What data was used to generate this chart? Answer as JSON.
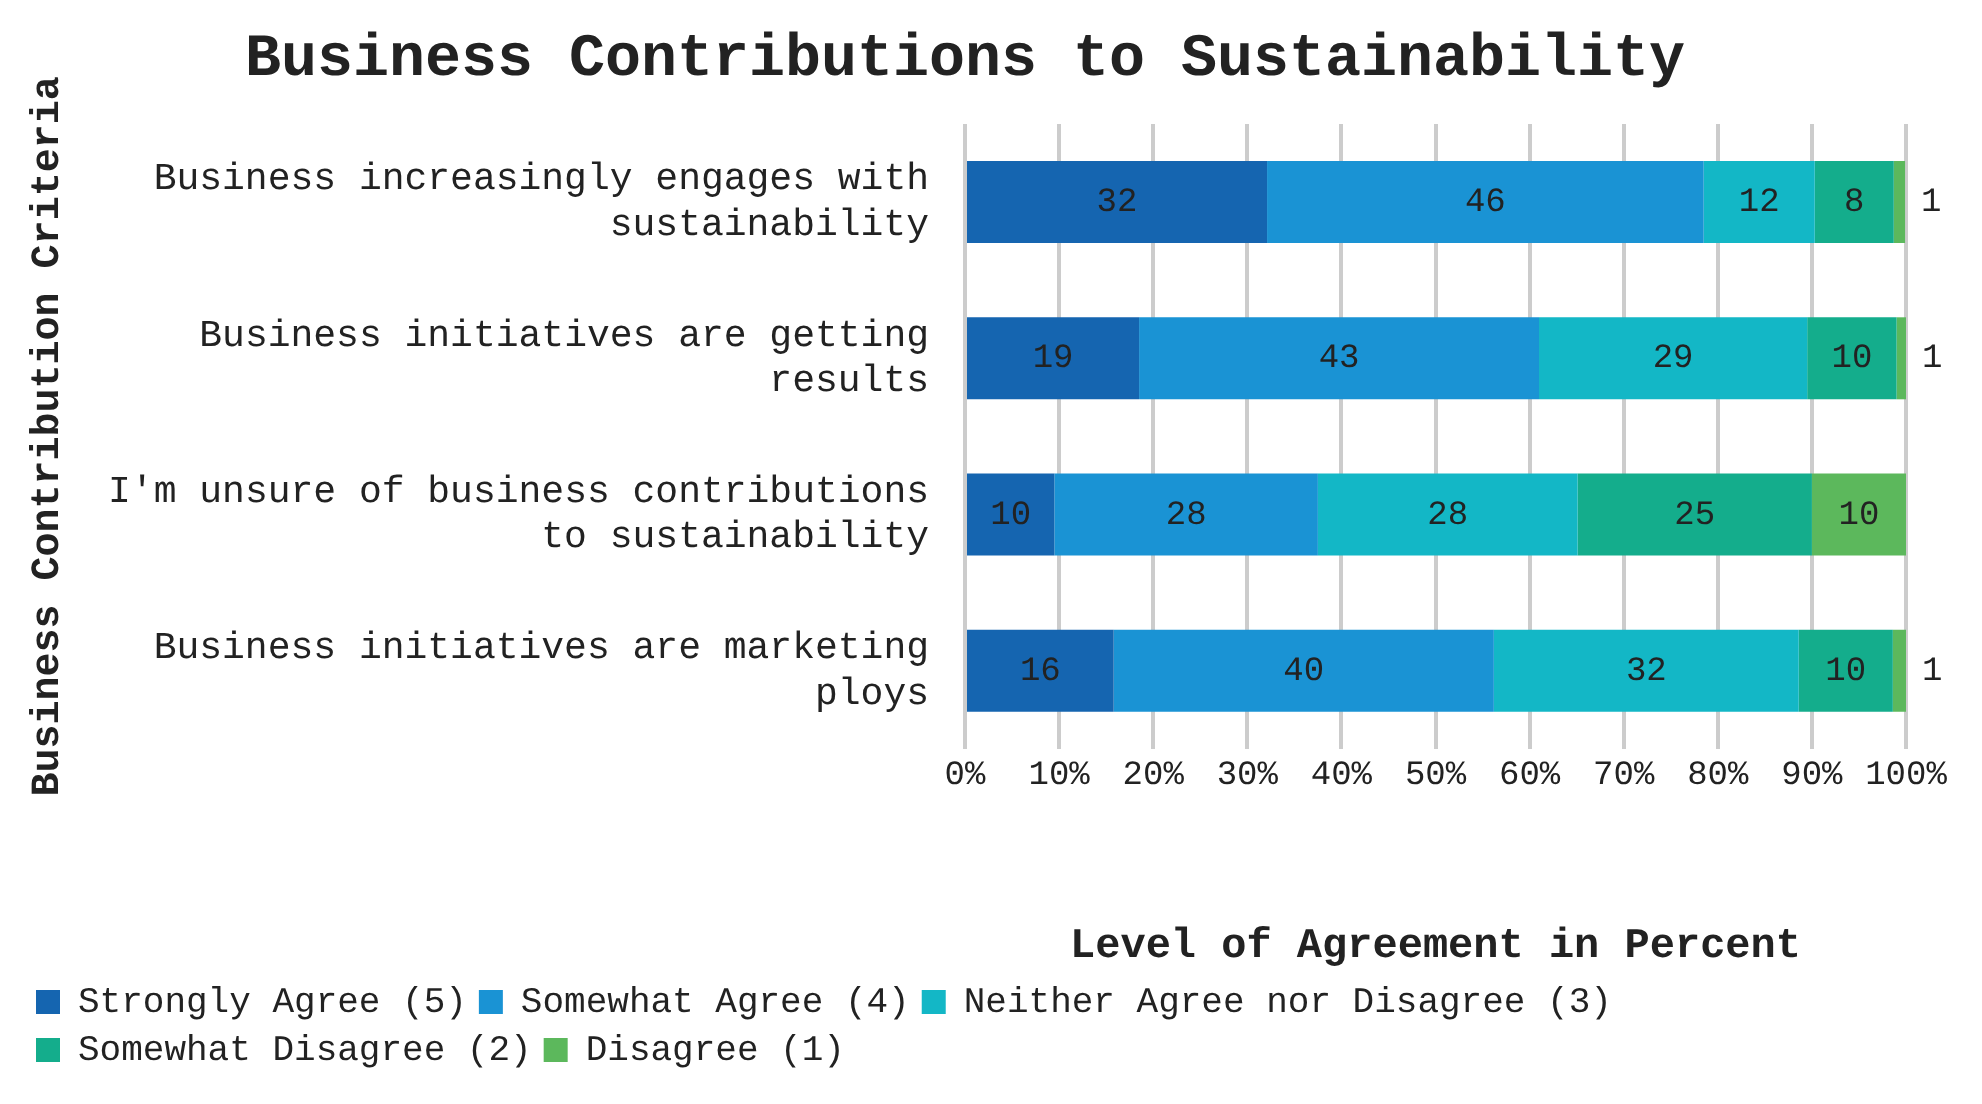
{
  "chart_data": {
    "type": "bar",
    "orientation": "horizontal",
    "stacked": true,
    "title": "Business Contributions to Sustainability",
    "xlabel": "Level of Agreement in Percent",
    "ylabel": "Business Contribution Criteria",
    "categories": [
      "Business increasingly engages with sustainability",
      "Business initiatives are getting results",
      "I'm unsure of business contributions to sustainability",
      "Business initiatives are marketing ploys"
    ],
    "series": [
      {
        "name": "Strongly Agree (5)",
        "color": "#1565b0",
        "values": [
          32.1,
          18.5,
          9.5,
          15.8
        ],
        "value_labels": [
          "32",
          "19",
          "10",
          "16"
        ]
      },
      {
        "name": "Somewhat Agree (4)",
        "color": "#1a93d4",
        "values": [
          46.4,
          42.5,
          28,
          40.4
        ],
        "value_labels": [
          "46",
          "43",
          "28",
          "40"
        ]
      },
      {
        "name": "Neither Agree nor Disagree (3)",
        "color": "#13b7c6",
        "values": [
          11.8,
          28.5,
          27.6,
          32.4
        ],
        "value_labels": [
          "12",
          "29",
          "28",
          "32"
        ]
      },
      {
        "name": "Somewhat Disagree (2)",
        "color": "#14ad8c",
        "values": [
          8.4,
          9.5,
          24.9,
          10
        ],
        "value_labels": [
          "8",
          "10",
          "25",
          "10"
        ]
      },
      {
        "name": "Disagree (1)",
        "color": "#5cb85c",
        "values": [
          1.2,
          1,
          10,
          1.4
        ],
        "value_labels": [
          "1",
          "1",
          "10",
          "1"
        ]
      }
    ],
    "xlim": [
      0,
      100
    ],
    "xticks": [
      {
        "value": 0,
        "label": "0%"
      },
      {
        "value": 10,
        "label": "10%"
      },
      {
        "value": 20,
        "label": "20%"
      },
      {
        "value": 30,
        "label": "30%"
      },
      {
        "value": 40,
        "label": "40%"
      },
      {
        "value": 50,
        "label": "50%"
      },
      {
        "value": 60,
        "label": "60%"
      },
      {
        "value": 70,
        "label": "70%"
      },
      {
        "value": 80,
        "label": "80%"
      },
      {
        "value": 90,
        "label": "90%"
      },
      {
        "value": 100,
        "label": "100%"
      }
    ],
    "grid": "x",
    "legend": "bottom"
  }
}
